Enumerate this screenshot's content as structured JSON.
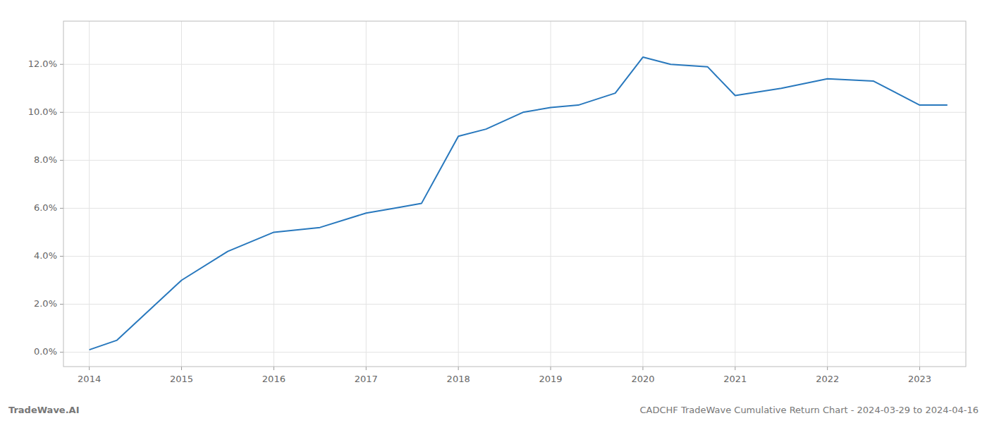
{
  "chart_data": {
    "type": "line",
    "x": [
      2014.0,
      2014.3,
      2015.0,
      2015.5,
      2016.0,
      2016.5,
      2017.0,
      2017.3,
      2017.6,
      2018.0,
      2018.3,
      2018.7,
      2019.0,
      2019.3,
      2019.7,
      2020.0,
      2020.3,
      2020.7,
      2021.0,
      2021.5,
      2022.0,
      2022.5,
      2023.0,
      2023.3
    ],
    "values": [
      0.001,
      0.005,
      0.03,
      0.042,
      0.05,
      0.052,
      0.058,
      0.06,
      0.062,
      0.09,
      0.093,
      0.1,
      0.102,
      0.103,
      0.108,
      0.123,
      0.12,
      0.119,
      0.107,
      0.11,
      0.114,
      0.113,
      0.103,
      0.103
    ],
    "color": "#2878bd",
    "xlim": [
      2013.72,
      2023.5
    ],
    "ylim": [
      -0.006,
      0.138
    ],
    "xticks": [
      2014,
      2015,
      2016,
      2017,
      2018,
      2019,
      2020,
      2021,
      2022,
      2023
    ],
    "yticks": [
      {
        "value": 0.0,
        "label": "0.0%"
      },
      {
        "value": 0.02,
        "label": "2.0%"
      },
      {
        "value": 0.04,
        "label": "4.0%"
      },
      {
        "value": 0.06,
        "label": "6.0%"
      },
      {
        "value": 0.08,
        "label": "8.0%"
      },
      {
        "value": 0.1,
        "label": "10.0%"
      },
      {
        "value": 0.12,
        "label": "12.0%"
      }
    ],
    "grid": true,
    "annotations": [
      "TradeWave.AI",
      "CADCHF TradeWave Cumulative Return Chart - 2024-03-29 to 2024-04-16"
    ]
  }
}
